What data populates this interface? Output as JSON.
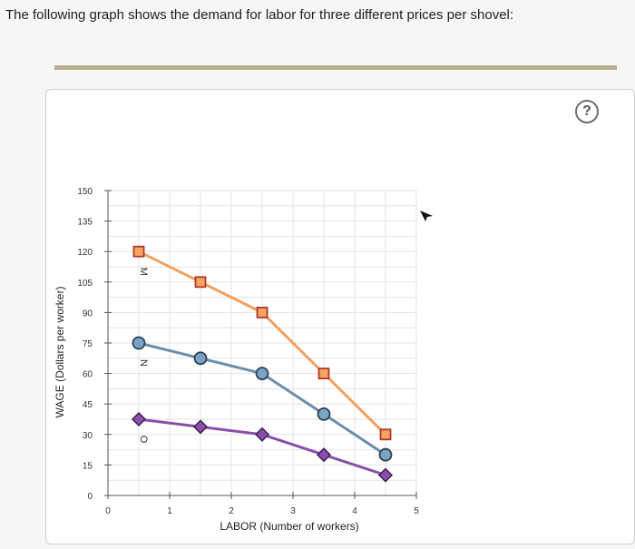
{
  "question": {
    "text": "The following graph shows the demand for labor for three different prices per shovel:"
  },
  "help": {
    "label": "?"
  },
  "chart_data": {
    "type": "line",
    "xlabel": "LABOR (Number of workers)",
    "ylabel": "WAGE (Dollars per worker)",
    "xlim": [
      0,
      5
    ],
    "ylim": [
      0,
      150
    ],
    "xticks": [
      0,
      1,
      2,
      3,
      4,
      5
    ],
    "yticks": [
      0,
      15,
      30,
      45,
      60,
      75,
      90,
      105,
      120,
      135,
      150
    ],
    "grid": true,
    "x": [
      0.5,
      1.5,
      2.5,
      3.5,
      4.5
    ],
    "series": [
      {
        "id": "high",
        "marker": "square",
        "color": "#f0a060",
        "fill": "#f5a561",
        "stroke": "#b0382a",
        "values": [
          120,
          105,
          90,
          60,
          30
        ],
        "point_label": "M"
      },
      {
        "id": "mid",
        "marker": "circle",
        "color": "#6b8eab",
        "fill": "#7aa3c4",
        "stroke": "#2e3f55",
        "values": [
          75,
          67.5,
          60,
          40,
          20
        ],
        "point_label": "N"
      },
      {
        "id": "low",
        "marker": "diamond",
        "color": "#8a4fa8",
        "fill": "#8a4fa8",
        "stroke": "#3d1f55",
        "values": [
          37.5,
          33.75,
          30,
          20,
          10
        ],
        "point_label": "O"
      }
    ]
  }
}
